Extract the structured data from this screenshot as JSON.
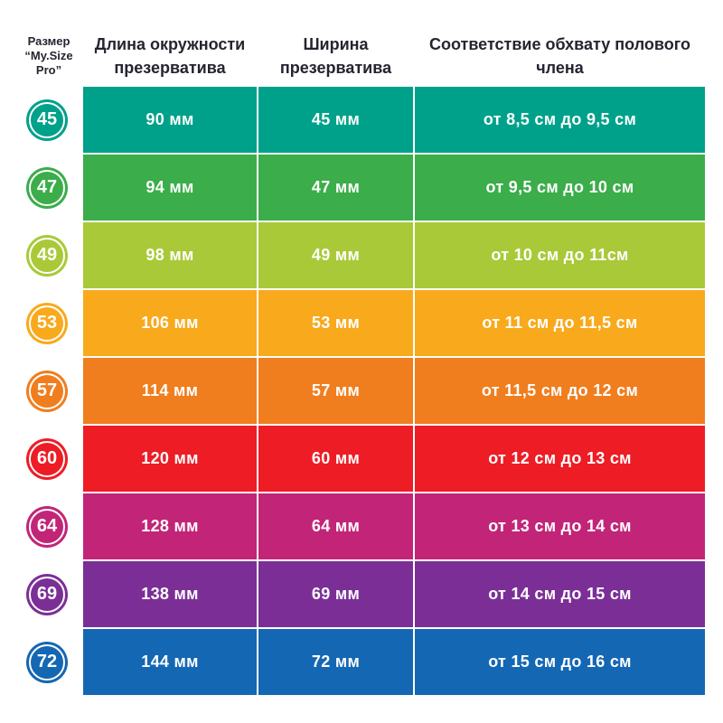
{
  "header": {
    "size": {
      "lines": [
        "Размер",
        "“My.Size",
        "Pro”"
      ]
    },
    "circumference": {
      "lines": [
        "Длина окружности",
        "презерватива"
      ]
    },
    "width": {
      "lines": [
        "Ширина",
        "презерватива"
      ]
    },
    "girth": {
      "label": "Соответствие обхвату полового члена"
    }
  },
  "rows": [
    {
      "size": "45",
      "circumference": "90 мм",
      "width": "45 мм",
      "girth": "от 8,5 см до 9,5 см",
      "color": "#00A18A"
    },
    {
      "size": "47",
      "circumference": "94 мм",
      "width": "47 мм",
      "girth": "от 9,5 см до 10 см",
      "color": "#3BAD4A"
    },
    {
      "size": "49",
      "circumference": "98 мм",
      "width": "49 мм",
      "girth": "от 10 см до 11см",
      "color": "#A9C938"
    },
    {
      "size": "53",
      "circumference": "106 мм",
      "width": "53 мм",
      "girth": "от 11 см до 11,5 см",
      "color": "#F9A91C"
    },
    {
      "size": "57",
      "circumference": "114 мм",
      "width": "57 мм",
      "girth": "от 11,5 см до 12 см",
      "color": "#F07E1E"
    },
    {
      "size": "60",
      "circumference": "120 мм",
      "width": "60 мм",
      "girth": "от 12 см до 13 см",
      "color": "#EE1C25"
    },
    {
      "size": "64",
      "circumference": "128 мм",
      "width": "64 мм",
      "girth": "от 13 см до 14 см",
      "color": "#C22577"
    },
    {
      "size": "69",
      "circumference": "138 мм",
      "width": "69 мм",
      "girth": "от 14 см до 15 см",
      "color": "#7B2F96"
    },
    {
      "size": "72",
      "circumference": "144 мм",
      "width": "72 мм",
      "girth": "от 15 см до 16 см",
      "color": "#1467B3"
    }
  ],
  "chart_data": {
    "type": "table",
    "title": "Таблица размеров презервативов My.Size Pro",
    "columns": [
      "Размер “My.Size Pro”",
      "Длина окружности презерватива",
      "Ширина презерватива",
      "Соответствие обхвату полового члена"
    ],
    "rows": [
      [
        "45",
        "90 мм",
        "45 мм",
        "от 8,5 см до 9,5 см"
      ],
      [
        "47",
        "94 мм",
        "47 мм",
        "от 9,5 см до 10 см"
      ],
      [
        "49",
        "98 мм",
        "49 мм",
        "от 10 см до 11см"
      ],
      [
        "53",
        "106 мм",
        "53 мм",
        "от 11 см до 11,5 см"
      ],
      [
        "57",
        "114 мм",
        "57 мм",
        "от 11,5 см до 12 см"
      ],
      [
        "60",
        "120 мм",
        "60 мм",
        "от 12 см до 13 см"
      ],
      [
        "64",
        "128 мм",
        "64 мм",
        "от 13 см до 14 см"
      ],
      [
        "69",
        "138 мм",
        "69 мм",
        "от 14 см до 15 см"
      ],
      [
        "72",
        "144 мм",
        "72 мм",
        "от 15 см до 16 см"
      ]
    ],
    "row_colors": [
      "#00A18A",
      "#3BAD4A",
      "#A9C938",
      "#F9A91C",
      "#F07E1E",
      "#EE1C25",
      "#C22577",
      "#7B2F96",
      "#1467B3"
    ]
  }
}
